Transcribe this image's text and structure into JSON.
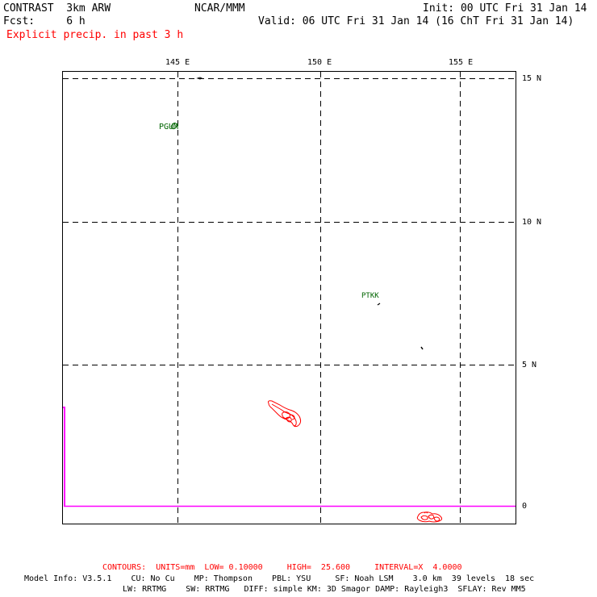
{
  "header": {
    "model": "CONTRAST  3km ARW",
    "center": "NCAR/MMM",
    "init": "Init: 00 UTC Fri 31 Jan 14",
    "fcst": "Fcst:     6 h",
    "valid": "Valid: 06 UTC Fri 31 Jan 14 (16 ChT Fri 31 Jan 14)",
    "field": "Explicit precip. in past 3 h"
  },
  "map": {
    "lon_labels": [
      "145 E",
      "150 E",
      "155 E"
    ],
    "lat_labels": [
      "15 N",
      "10 N",
      "5 N",
      "0"
    ],
    "stations": [
      {
        "id": "PGUM"
      },
      {
        "id": "PTKK"
      }
    ],
    "colors": {
      "frame": "#000000",
      "grid": "#000000",
      "contour": "#ff0000",
      "equator": "#ff00ff",
      "station": "#006400"
    }
  },
  "footer": {
    "contours": "CONTOURS:  UNITS=mm  LOW= 0.10000     HIGH=  25.600     INTERVAL=X  4.0000",
    "model_info_1": "Model Info: V3.5.1    CU: No Cu    MP: Thompson    PBL: YSU     SF: Noah LSM    3.0 km  39 levels  18 sec",
    "model_info_2": "LW: RRTMG    SW: RRTMG   DIFF: simple KM: 3D Smagor DAMP: Rayleigh3  SFLAY: Rev MM5"
  }
}
